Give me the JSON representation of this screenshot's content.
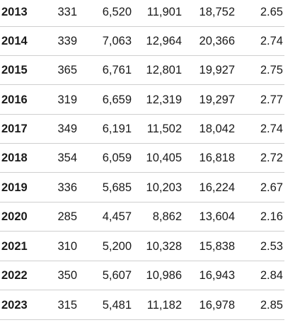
{
  "rows": [
    {
      "year": "2013",
      "v1": "331",
      "v2": "6,520",
      "v3": "11,901",
      "v4": "18,752",
      "v5": "2.65"
    },
    {
      "year": "2014",
      "v1": "339",
      "v2": "7,063",
      "v3": "12,964",
      "v4": "20,366",
      "v5": "2.74"
    },
    {
      "year": "2015",
      "v1": "365",
      "v2": "6,761",
      "v3": "12,801",
      "v4": "19,927",
      "v5": "2.75"
    },
    {
      "year": "2016",
      "v1": "319",
      "v2": "6,659",
      "v3": "12,319",
      "v4": "19,297",
      "v5": "2.77"
    },
    {
      "year": "2017",
      "v1": "349",
      "v2": "6,191",
      "v3": "11,502",
      "v4": "18,042",
      "v5": "2.74"
    },
    {
      "year": "2018",
      "v1": "354",
      "v2": "6,059",
      "v3": "10,405",
      "v4": "16,818",
      "v5": "2.72"
    },
    {
      "year": "2019",
      "v1": "336",
      "v2": "5,685",
      "v3": "10,203",
      "v4": "16,224",
      "v5": "2.67"
    },
    {
      "year": "2020",
      "v1": "285",
      "v2": "4,457",
      "v3": "8,862",
      "v4": "13,604",
      "v5": "2.16"
    },
    {
      "year": "2021",
      "v1": "310",
      "v2": "5,200",
      "v3": "10,328",
      "v4": "15,838",
      "v5": "2.53"
    },
    {
      "year": "2022",
      "v1": "350",
      "v2": "5,607",
      "v3": "10,986",
      "v4": "16,943",
      "v5": "2.84"
    },
    {
      "year": "2023",
      "v1": "315",
      "v2": "5,481",
      "v3": "11,182",
      "v4": "16,978",
      "v5": "2.85"
    }
  ]
}
